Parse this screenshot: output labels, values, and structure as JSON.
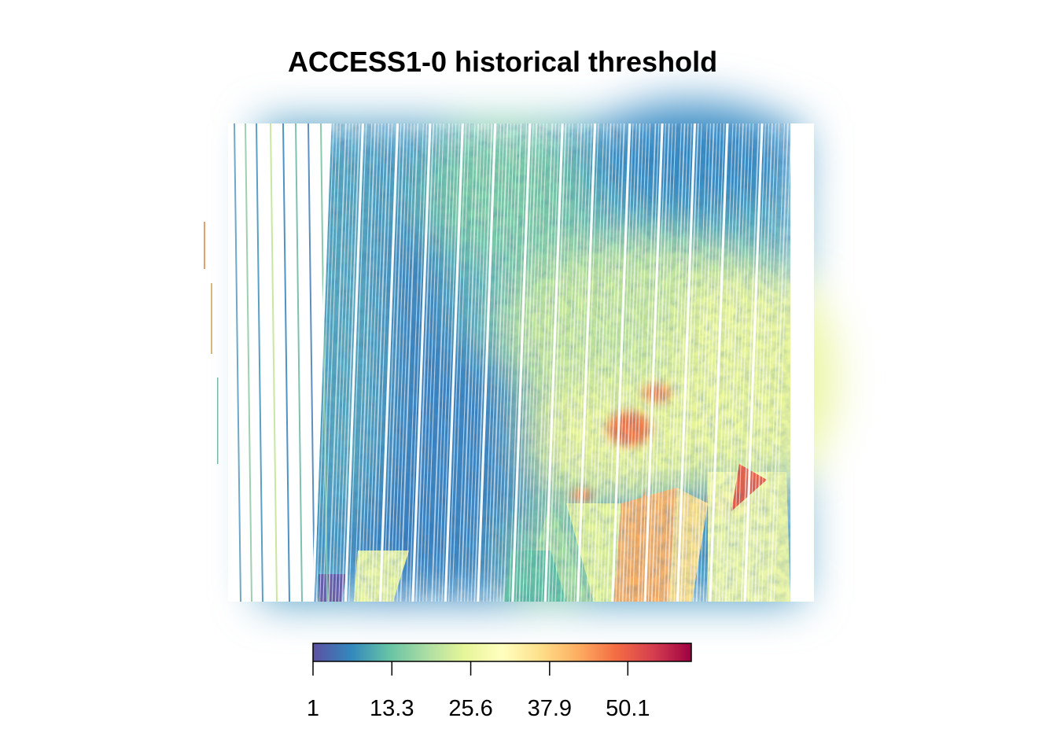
{
  "chart_data": {
    "type": "heatmap",
    "title": "ACCESS1-0 historical threshold",
    "xlabel": "",
    "ylabel": "",
    "colorbar": {
      "range": [
        1,
        60
      ],
      "tick_values": [
        1,
        13.3,
        25.6,
        37.9,
        50.1
      ],
      "tick_labels": [
        "1",
        "13.3",
        "25.6",
        "37.9",
        "50.1"
      ],
      "palette": [
        "#5E4FA2",
        "#3288BD",
        "#66C2A5",
        "#ABDDA4",
        "#E6F598",
        "#FFFFBF",
        "#FEE08B",
        "#FDAE61",
        "#F46D43",
        "#D53E4F",
        "#9E0142"
      ],
      "placement": "bottom"
    },
    "grid": false,
    "legend": "colorbar below map"
  }
}
